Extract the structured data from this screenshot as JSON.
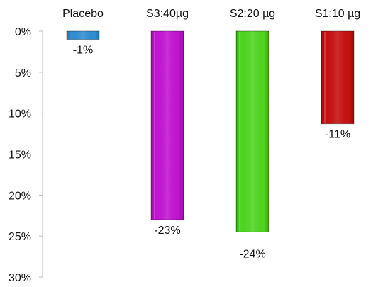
{
  "chart_data": {
    "type": "bar",
    "categories": [
      "Placebo",
      "S3:40µg",
      "S2:20 µg",
      "S1:10 µg"
    ],
    "values": [
      -1,
      -23,
      -24.5,
      -11.3
    ],
    "value_labels": [
      "-1%",
      "-23%",
      "-24%",
      "-11%"
    ],
    "colors": [
      "#2f8fd4",
      "#c414d4",
      "#4fd820",
      "#c81010"
    ],
    "y_axis": {
      "inverted": true,
      "range": [
        0,
        30
      ],
      "ticks": [
        0,
        5,
        10,
        15,
        20,
        25,
        30
      ],
      "tick_labels": [
        "0%",
        "5%",
        "10%",
        "15%",
        "20%",
        "25%",
        "30%"
      ]
    },
    "category_axis_position": "top",
    "grid": false,
    "legend": "none"
  }
}
